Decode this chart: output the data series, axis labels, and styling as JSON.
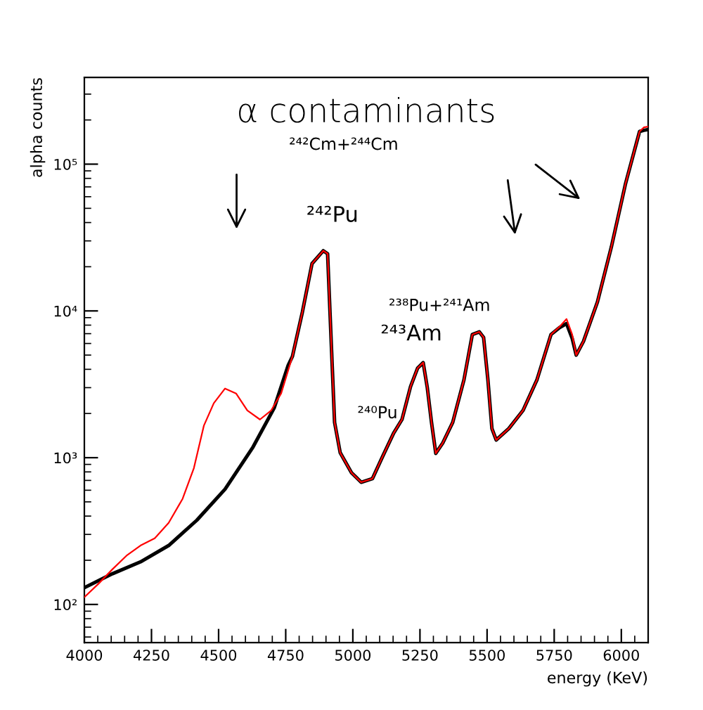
{
  "chart_data": {
    "type": "line",
    "title": "α contaminants",
    "xlabel": "energy (KeV)",
    "ylabel": "alpha counts",
    "log": "y",
    "xlim": [
      4000,
      6100
    ],
    "ylim": [
      55,
      390000
    ],
    "xticks": [
      4000,
      4250,
      4500,
      4750,
      5000,
      5250,
      5500,
      5750,
      6000
    ],
    "yticks": [
      {
        "value": 100,
        "label": "10²"
      },
      {
        "value": 1000,
        "label": "10³"
      },
      {
        "value": 10000,
        "label": "10⁴"
      },
      {
        "value": 100000,
        "label": "10⁵"
      }
    ],
    "grid": false,
    "legend": false,
    "marker": "none",
    "line_style": "solid",
    "series": [
      {
        "color": "#ff0000",
        "x": [
          4000,
          4052,
          4105,
          4157,
          4209,
          4262,
          4314,
          4366,
          4408,
          4445,
          4482,
          4524,
          4565,
          4607,
          4654,
          4696,
          4733,
          4775,
          4812,
          4848,
          4890,
          4906,
          4921,
          4932,
          4953,
          4995,
          5031,
          5073,
          5110,
          5152,
          5183,
          5215,
          5241,
          5262,
          5277,
          5293,
          5309,
          5335,
          5372,
          5414,
          5445,
          5471,
          5487,
          5503,
          5518,
          5534,
          5581,
          5634,
          5686,
          5738,
          5770,
          5796,
          5817,
          5832,
          5859,
          5911,
          5963,
          6016,
          6068,
          6084,
          6100
        ],
        "values": [
          112,
          138,
          174,
          215,
          252,
          282,
          360,
          525,
          850,
          1650,
          2350,
          2960,
          2740,
          2100,
          1820,
          2100,
          2740,
          4900,
          9800,
          21000,
          25700,
          24500,
          5250,
          1740,
          1080,
          790,
          680,
          720,
          1010,
          1470,
          1820,
          3050,
          4070,
          4440,
          3030,
          1740,
          1070,
          1260,
          1740,
          3400,
          6900,
          7200,
          6600,
          3400,
          1580,
          1320,
          1580,
          2100,
          3400,
          6900,
          7800,
          8800,
          6900,
          5000,
          6200,
          11500,
          27300,
          74000,
          167000,
          178000,
          180000
        ]
      },
      {
        "color": "#000000",
        "x": [
          4000,
          4105,
          4209,
          4314,
          4419,
          4524,
          4628,
          4707,
          4759,
          4775,
          4812,
          4848,
          4890,
          4906,
          4921,
          4932,
          4953,
          4995,
          5031,
          5073,
          5110,
          5152,
          5183,
          5215,
          5241,
          5262,
          5277,
          5293,
          5309,
          5335,
          5372,
          5414,
          5445,
          5471,
          5487,
          5503,
          5518,
          5534,
          5581,
          5634,
          5686,
          5738,
          5770,
          5796,
          5817,
          5832,
          5859,
          5911,
          5963,
          6016,
          6068,
          6084,
          6100
        ],
        "values": [
          130,
          162,
          195,
          252,
          375,
          610,
          1180,
          2180,
          4250,
          4900,
          9800,
          21000,
          25700,
          24500,
          5250,
          1740,
          1080,
          790,
          680,
          720,
          1010,
          1470,
          1820,
          3050,
          4070,
          4440,
          3030,
          1740,
          1070,
          1260,
          1740,
          3400,
          6900,
          7200,
          6600,
          3400,
          1580,
          1320,
          1580,
          2100,
          3400,
          6900,
          7700,
          8200,
          6500,
          5000,
          6200,
          11500,
          27300,
          74000,
          167000,
          170000,
          172000
        ]
      }
    ],
    "annotations": [
      "²⁴²Pu",
      "²⁴²Cm+²⁴⁴Cm",
      "²⁴³Am",
      "²³⁸Pu+²⁴¹Am",
      "²⁴⁰Pu"
    ]
  }
}
